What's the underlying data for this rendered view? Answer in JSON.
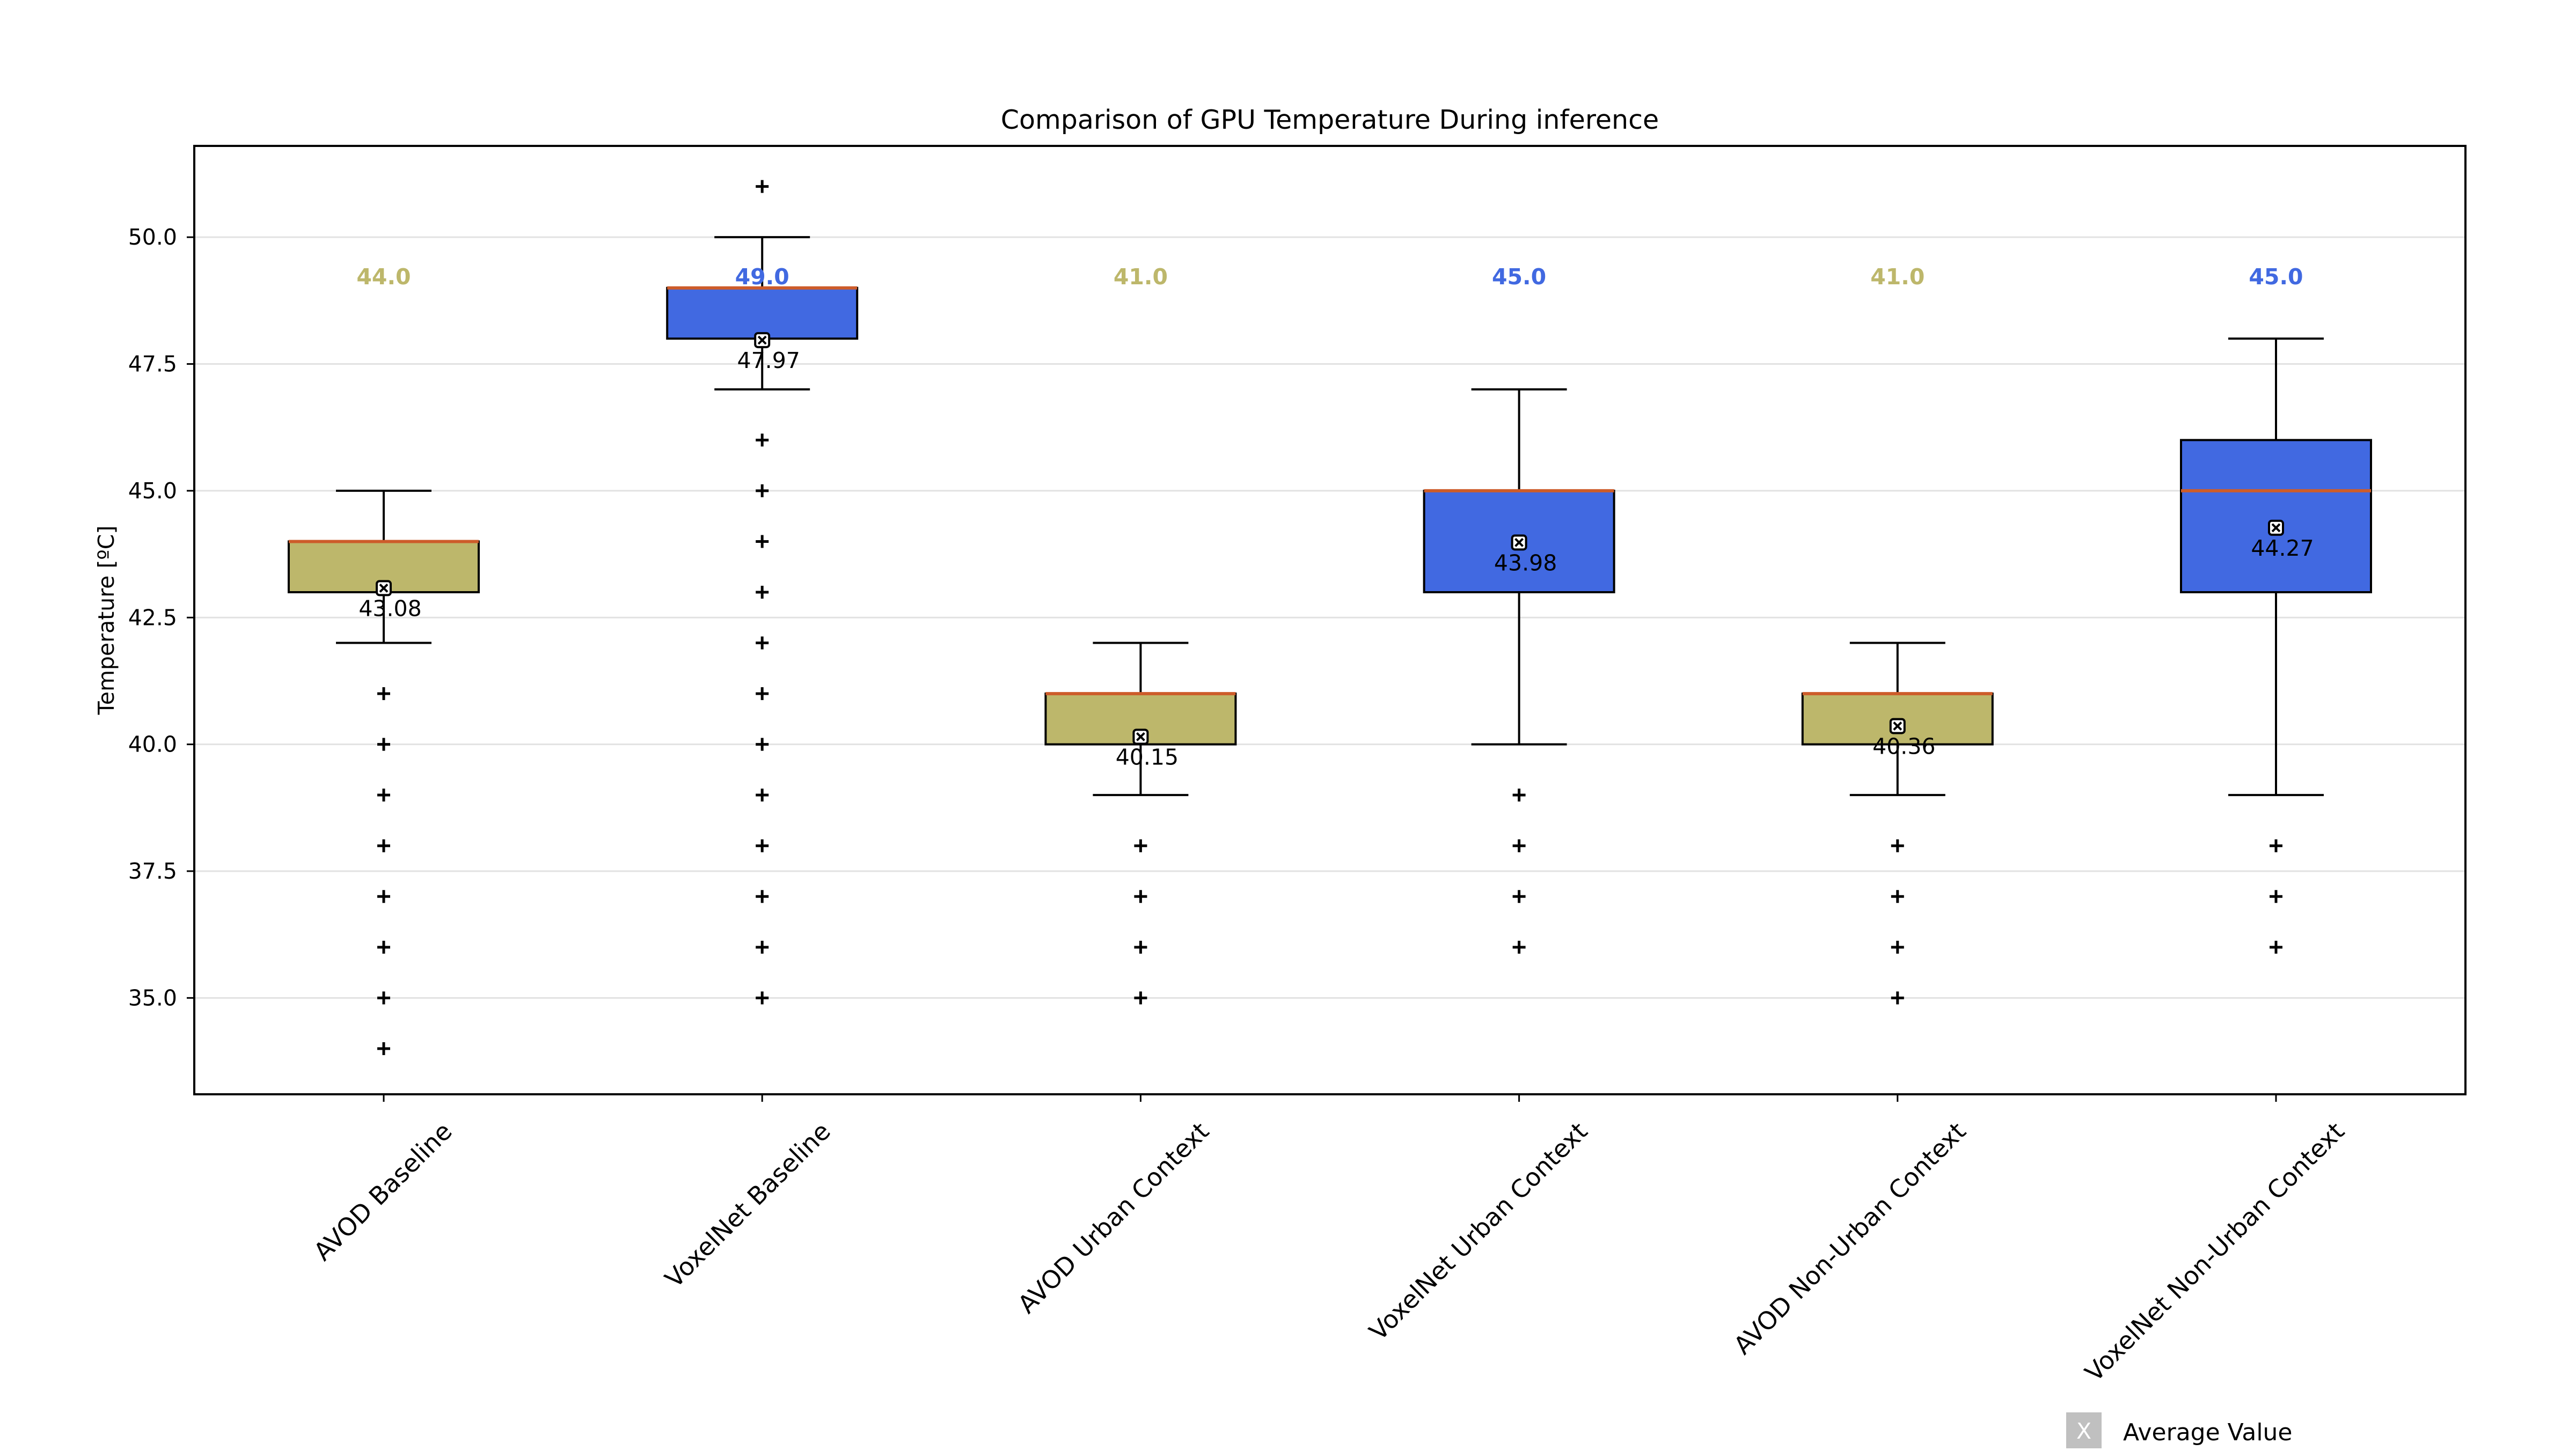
{
  "chart_data": {
    "type": "boxplot",
    "title": "Comparison of GPU Temperature During inference",
    "xlabel": "",
    "ylabel": "Temperature [ºC]",
    "ylim": [
      33.1,
      51.8
    ],
    "yticks": [
      35.0,
      37.5,
      40.0,
      42.5,
      45.0,
      47.5,
      50.0
    ],
    "ytick_labels": [
      "35.0",
      "37.5",
      "40.0",
      "42.5",
      "45.0",
      "47.5",
      "50.0"
    ],
    "grid": "horizontal",
    "colors": {
      "avod": "#bdb76b",
      "voxelnet": "#4169e1",
      "median_line": "#cd5c2a",
      "legend_marker": "#c0c0c0"
    },
    "categories": [
      "AVOD Baseline",
      "VoxelNet Baseline",
      "AVOD Urban Context",
      "VoxelNet Urban Context",
      "AVOD Non-Urban Context",
      "VoxelNet Non-Urban Context"
    ],
    "boxes": [
      {
        "name": "AVOD Baseline",
        "group": "avod",
        "whisker_low": 42,
        "q1": 43,
        "median": 44,
        "q3": 44,
        "whisker_high": 45,
        "mean": 43.08,
        "mean_label": "43.08",
        "median_label": "44.0",
        "outliers": [
          34,
          35,
          36,
          37,
          38,
          39,
          40,
          41
        ]
      },
      {
        "name": "VoxelNet Baseline",
        "group": "voxelnet",
        "whisker_low": 47,
        "q1": 48,
        "median": 49,
        "q3": 49,
        "whisker_high": 50,
        "mean": 47.97,
        "mean_label": "47.97",
        "median_label": "49.0",
        "outliers": [
          35,
          36,
          37,
          38,
          39,
          40,
          41,
          42,
          43,
          44,
          45,
          46,
          51
        ]
      },
      {
        "name": "AVOD Urban Context",
        "group": "avod",
        "whisker_low": 39,
        "q1": 40,
        "median": 41,
        "q3": 41,
        "whisker_high": 42,
        "mean": 40.15,
        "mean_label": "40.15",
        "median_label": "41.0",
        "outliers": [
          35,
          36,
          37,
          38
        ]
      },
      {
        "name": "VoxelNet Urban Context",
        "group": "voxelnet",
        "whisker_low": 40,
        "q1": 43,
        "median": 45,
        "q3": 45,
        "whisker_high": 47,
        "mean": 43.98,
        "mean_label": "43.98",
        "median_label": "45.0",
        "outliers": [
          36,
          37,
          38,
          39
        ]
      },
      {
        "name": "AVOD Non-Urban Context",
        "group": "avod",
        "whisker_low": 39,
        "q1": 40,
        "median": 41,
        "q3": 41,
        "whisker_high": 42,
        "mean": 40.36,
        "mean_label": "40.36",
        "median_label": "41.0",
        "outliers": [
          35,
          36,
          37,
          38
        ]
      },
      {
        "name": "VoxelNet Non-Urban Context",
        "group": "voxelnet",
        "whisker_low": 39,
        "q1": 43,
        "median": 45,
        "q3": 46,
        "whisker_high": 48,
        "mean": 44.27,
        "mean_label": "44.27",
        "median_label": "45.0",
        "outliers": [
          36,
          37,
          38
        ]
      }
    ],
    "legend": {
      "marker_text": "X",
      "label": "Average Value",
      "placement": "bottom-right"
    }
  }
}
